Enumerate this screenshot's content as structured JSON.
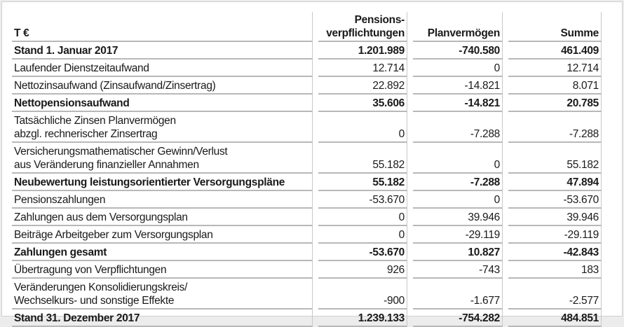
{
  "header": {
    "label": "T €",
    "col1": "Pensions-\nverpflichtungen",
    "col1_line1": "Pensions-",
    "col1_line2": "verpflichtungen",
    "col2": "Planvermögen",
    "col3": "Summe"
  },
  "rows": [
    {
      "label": "Stand 1. Januar 2017",
      "v1": "1.201.989",
      "v2": "-740.580",
      "v3": "461.409",
      "bold": true
    },
    {
      "label": "Laufender Dienstzeitaufwand",
      "v1": "12.714",
      "v2": "0",
      "v3": "12.714"
    },
    {
      "label": "Nettozinsaufwand (Zinsaufwand/Zinsertrag)",
      "v1": "22.892",
      "v2": "-14.821",
      "v3": "8.071"
    },
    {
      "label": "Nettopensionsaufwand",
      "v1": "35.606",
      "v2": "-14.821",
      "v3": "20.785",
      "bold": true
    },
    {
      "label": "Tatsächliche Zinsen Planvermögen",
      "label2": "abzgl. rechnerischer Zinsertrag",
      "v1": "0",
      "v2": "-7.288",
      "v3": "-7.288"
    },
    {
      "label": "Versicherungsmathematischer Gewinn/Verlust",
      "label2": "aus Veränderung finanzieller Annahmen",
      "v1": "55.182",
      "v2": "0",
      "v3": "55.182"
    },
    {
      "label": "Neubewertung leistungsorientierter Versorgungspläne",
      "v1": "55.182",
      "v2": "-7.288",
      "v3": "47.894",
      "bold": true
    },
    {
      "label": "Pensionszahlungen",
      "v1": "-53.670",
      "v2": "0",
      "v3": "-53.670"
    },
    {
      "label": "Zahlungen aus dem Versorgungsplan",
      "v1": "0",
      "v2": "39.946",
      "v3": "39.946"
    },
    {
      "label": "Beiträge Arbeitgeber zum Versorgungsplan",
      "v1": "0",
      "v2": "-29.119",
      "v3": "-29.119"
    },
    {
      "label": "Zahlungen gesamt",
      "v1": "-53.670",
      "v2": "10.827",
      "v3": "-42.843",
      "bold": true
    },
    {
      "label": "Übertragung von Verpflichtungen",
      "v1": "926",
      "v2": "-743",
      "v3": "183"
    },
    {
      "label": "Veränderungen Konsolidierungskreis/",
      "label2": "Wechselkurs- und sonstige Effekte",
      "v1": "-900",
      "v2": "-1.677",
      "v3": "-2.577"
    },
    {
      "label": "Stand 31. Dezember 2017",
      "v1": "1.239.133",
      "v2": "-754.282",
      "v3": "484.851",
      "bold": true
    }
  ]
}
